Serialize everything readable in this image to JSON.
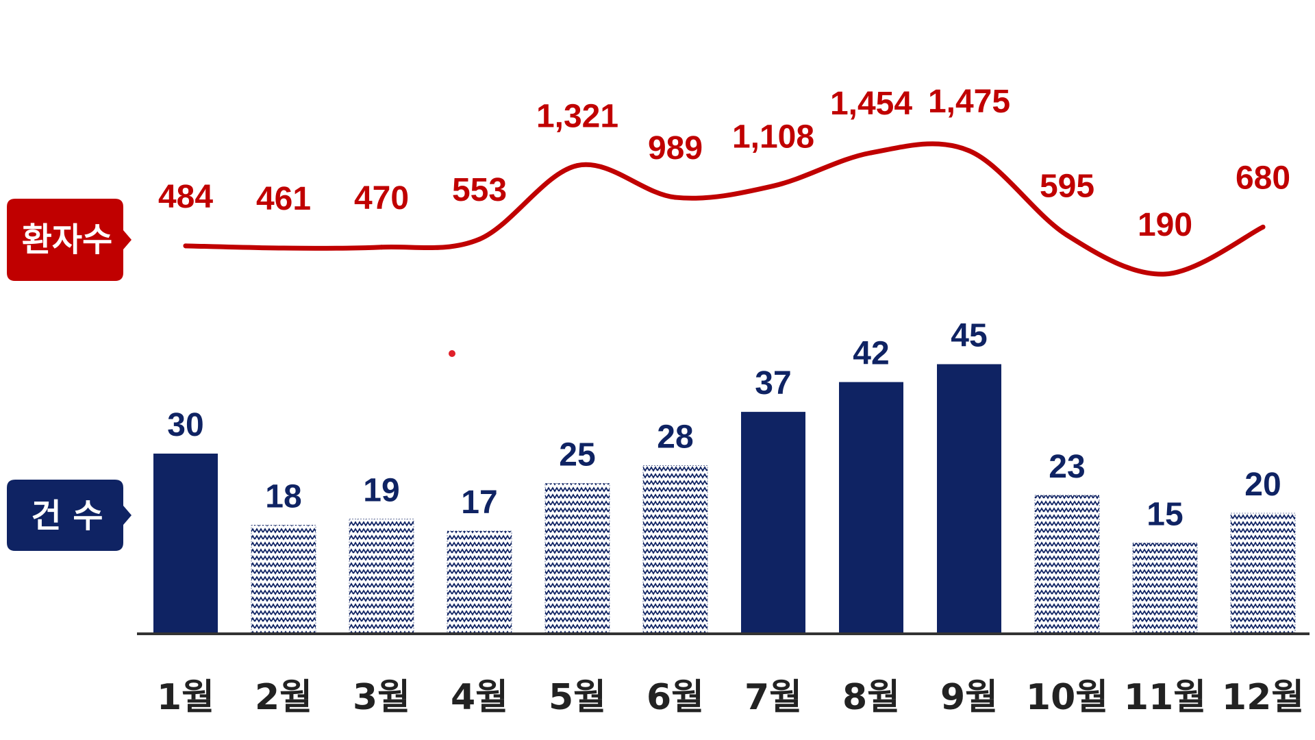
{
  "tags": {
    "patients": "환자수",
    "cases": "건 수"
  },
  "colors": {
    "patients_line": "#c00000",
    "bar_solid": "#0f2363",
    "bar_pattern": "#0f2363",
    "tag_patients_bg": "#c00000",
    "tag_cases_bg": "#0f2363",
    "axis": "#333333"
  },
  "chart_data": {
    "type": "bar",
    "categories": [
      "1월",
      "2월",
      "3월",
      "4월",
      "5월",
      "6월",
      "7월",
      "8월",
      "9월",
      "10월",
      "11월",
      "12월"
    ],
    "series": [
      {
        "name": "건 수",
        "type": "bar",
        "values": [
          30,
          18,
          19,
          17,
          25,
          28,
          37,
          42,
          45,
          23,
          15,
          20
        ],
        "fill_style": [
          "solid",
          "pattern",
          "pattern",
          "pattern",
          "pattern",
          "pattern",
          "solid",
          "solid",
          "solid",
          "pattern",
          "pattern",
          "pattern"
        ]
      },
      {
        "name": "환자수",
        "type": "line",
        "values": [
          484,
          461,
          470,
          553,
          1321,
          989,
          1108,
          1454,
          1475,
          595,
          190,
          680
        ],
        "labels": [
          "484",
          "461",
          "470",
          "553",
          "1,321",
          "989",
          "1,108",
          "1,454",
          "1,475",
          "595",
          "190",
          "680"
        ]
      }
    ],
    "title": "",
    "xlabel": "",
    "ylabel": "",
    "grid": false,
    "legend": "left"
  }
}
